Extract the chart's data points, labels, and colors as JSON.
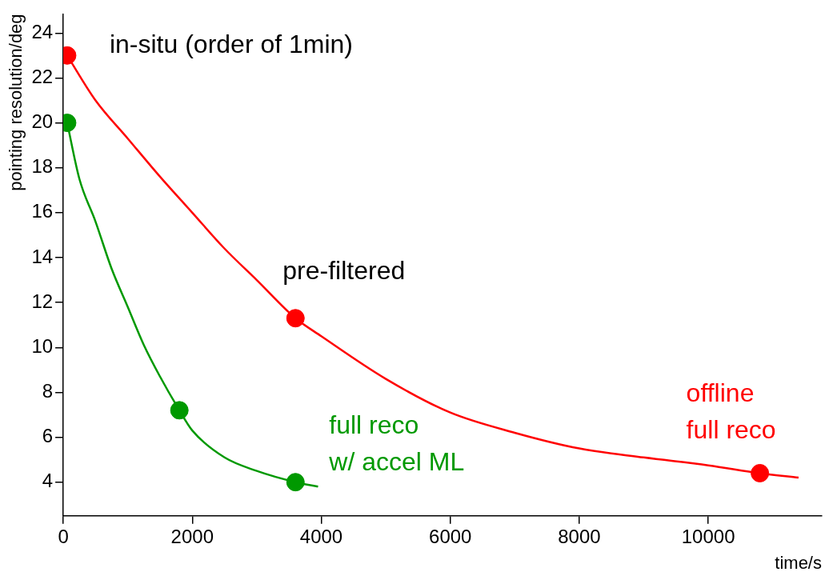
{
  "chart_data": {
    "type": "line",
    "xlabel": "time/s",
    "ylabel": "pointing resolution/deg",
    "xlim": [
      0,
      11760
    ],
    "xticks": [
      0,
      2000,
      4000,
      6000,
      8000,
      10000
    ],
    "ylim": [
      2.5,
      24.85
    ],
    "yticks": [
      4,
      6,
      8,
      10,
      12,
      14,
      16,
      18,
      20,
      22,
      24
    ],
    "marker": "none",
    "line_style": "solid",
    "legend": false,
    "series": [
      {
        "type": "line",
        "color": "#ff0000",
        "x": [
          60,
          500,
          1000,
          1500,
          2000,
          2500,
          3000,
          3600,
          4000,
          5000,
          6000,
          7000,
          8000,
          9000,
          10000,
          10800,
          11400
        ],
        "values": [
          23,
          21,
          19.3,
          17.6,
          16,
          14.4,
          13,
          11.3,
          10.5,
          8.6,
          7.1,
          6.2,
          5.5,
          5.1,
          4.75,
          4.4,
          4.2
        ]
      },
      {
        "type": "line",
        "color": "#009900",
        "x": [
          60,
          250,
          500,
          750,
          1000,
          1250,
          1500,
          1800,
          2000,
          2500,
          3000,
          3600,
          3950
        ],
        "values": [
          20,
          17.5,
          15.6,
          13.5,
          11.8,
          10.1,
          8.7,
          7.2,
          6.3,
          5.1,
          4.5,
          4.0,
          3.8
        ]
      },
      {
        "type": "scatter",
        "marker": "circle",
        "color": "#ff0000",
        "x": [
          60,
          3600
        ],
        "values": [
          23,
          11.3
        ]
      },
      {
        "type": "scatter",
        "marker": "circle",
        "name": "offline\nfull reco",
        "color": "#ff0000",
        "x": [
          10800
        ],
        "values": [
          4.4
        ]
      },
      {
        "type": "scatter",
        "marker": "circle",
        "color": "#009900",
        "x": [
          60,
          1800
        ],
        "values": [
          20,
          7.2
        ]
      },
      {
        "type": "scatter",
        "marker": "circle",
        "name": "full reco\nw/ accel ML",
        "color": "#009900",
        "x": [
          3600
        ],
        "values": [
          4.0
        ]
      }
    ],
    "annotations": [
      {
        "text": "in-situ (order of 1min)",
        "x": 60,
        "y": 23
      },
      {
        "text": "pre-filtered",
        "x": 3600,
        "y": 11.3
      }
    ]
  }
}
